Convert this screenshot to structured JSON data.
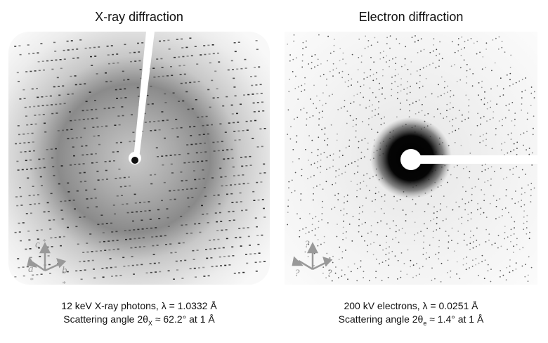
{
  "panels": [
    {
      "title": "X-ray diffraction",
      "caption_line1": "12 keV X-ray photons, λ = 1.0332 Å",
      "caption_line2_prefix": "Scattering angle 2θ",
      "caption_line2_sub": "X",
      "caption_line2_suffix": " ≈ 62.2° at 1 Å",
      "axes": {
        "c": "c",
        "a": "a",
        "b": "b",
        "star": "*"
      }
    },
    {
      "title": "Electron diffraction",
      "caption_line1": "200 kV electrons, λ = 0.0251 Å",
      "caption_line2_prefix": "Scattering angle 2θ",
      "caption_line2_sub": "e",
      "caption_line2_suffix": " ≈ 1.4° at 1 Å",
      "axes": {
        "c": "?",
        "a": "?",
        "b": "?"
      }
    }
  ],
  "colors": {
    "axis_gray": "#999999",
    "spot": "#222222"
  }
}
